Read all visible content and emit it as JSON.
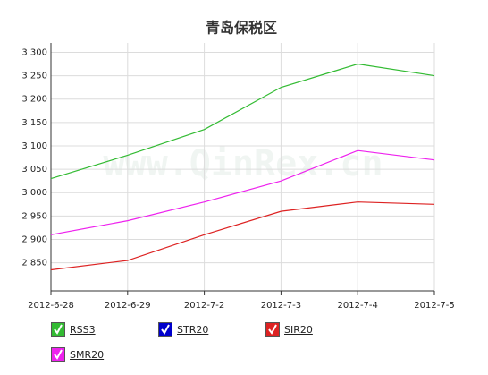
{
  "chart_data": {
    "type": "line",
    "title": "青岛保税区",
    "watermark": "www.QinRex.cn",
    "categories": [
      "2012-6-28",
      "2012-6-29",
      "2012-7-2",
      "2012-7-3",
      "2012-7-4",
      "2012-7-5"
    ],
    "series": [
      {
        "name": "RSS3",
        "color": "#33bb33",
        "values": [
          3030,
          3080,
          3135,
          3225,
          3275,
          3250
        ]
      },
      {
        "name": "STR20",
        "color": "#0000cc",
        "values": [
          null,
          null,
          null,
          null,
          null,
          null
        ]
      },
      {
        "name": "SIR20",
        "color": "#dd2222",
        "values": [
          2835,
          2855,
          2910,
          2960,
          2980,
          2975
        ]
      },
      {
        "name": "SMR20",
        "color": "#ee22ee",
        "values": [
          2910,
          2940,
          2980,
          3025,
          3090,
          3070
        ]
      }
    ],
    "ylim": [
      2790,
      3320
    ],
    "yticks": [
      {
        "value": 2850,
        "label": "2 850"
      },
      {
        "value": 2900,
        "label": "2 900"
      },
      {
        "value": 2950,
        "label": "2 950"
      },
      {
        "value": 3000,
        "label": "3 000"
      },
      {
        "value": 3050,
        "label": "3 050"
      },
      {
        "value": 3100,
        "label": "3 100"
      },
      {
        "value": 3150,
        "label": "3 150"
      },
      {
        "value": 3200,
        "label": "3 200"
      },
      {
        "value": 3250,
        "label": "3 250"
      },
      {
        "value": 3300,
        "label": "3 300"
      }
    ],
    "grid": true
  }
}
